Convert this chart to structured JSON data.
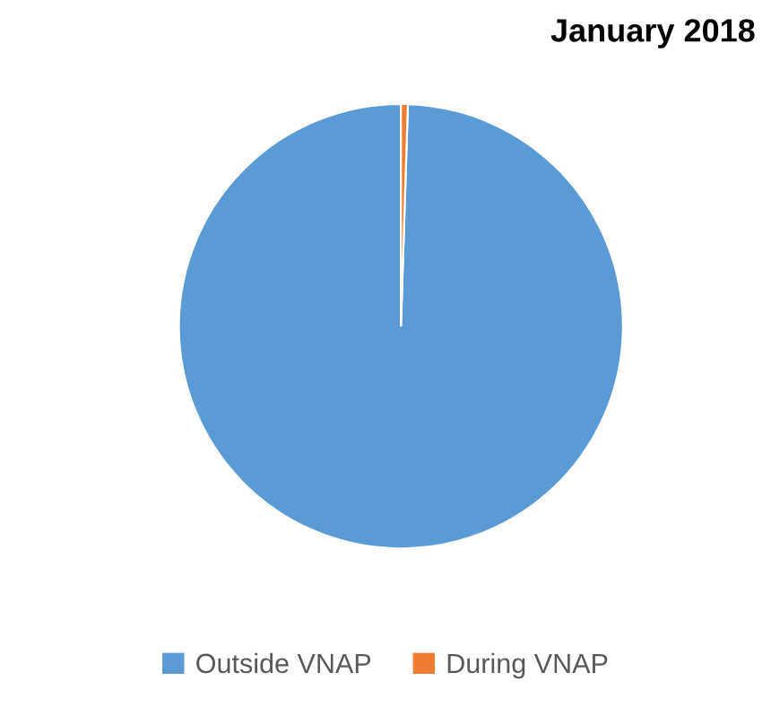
{
  "chart_data": {
    "type": "pie",
    "title": "January 2018",
    "categories": [
      "Outside VNAP",
      "During VNAP"
    ],
    "values": [
      99.5,
      0.5
    ],
    "colors": [
      "#5b9bd5",
      "#ed7d31"
    ],
    "legend": "bottom"
  }
}
